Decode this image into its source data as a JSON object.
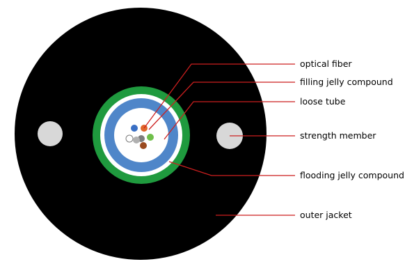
{
  "labels": {
    "optical_fiber": "optical fiber",
    "filling_jelly": "filling jelly compound",
    "loose_tube": "loose tube",
    "strength_member": "strength member",
    "flooding_jelly": "flooding jelly compound",
    "outer_jacket": "outer jacket"
  },
  "colors": {
    "outer_jacket": "#000000",
    "flooding_jelly": "#1f9a3e",
    "loose_tube": "#4f86c9",
    "filling_jelly": "#ffffff",
    "strength_member": "#d8d8d8",
    "callout_line": "#cc1f1f"
  },
  "fibers": [
    {
      "color_name": "blue",
      "color": "#3a6fc4"
    },
    {
      "color_name": "orange",
      "color": "#e0662a"
    },
    {
      "color_name": "green",
      "color": "#6fbf4a"
    },
    {
      "color_name": "brown",
      "color": "#9a4a1f"
    },
    {
      "color_name": "slate",
      "color": "#7d7d7d"
    },
    {
      "color_name": "white",
      "color": "#ffffff"
    },
    {
      "color_name": "grey",
      "color": "#b0b0b0"
    }
  ]
}
